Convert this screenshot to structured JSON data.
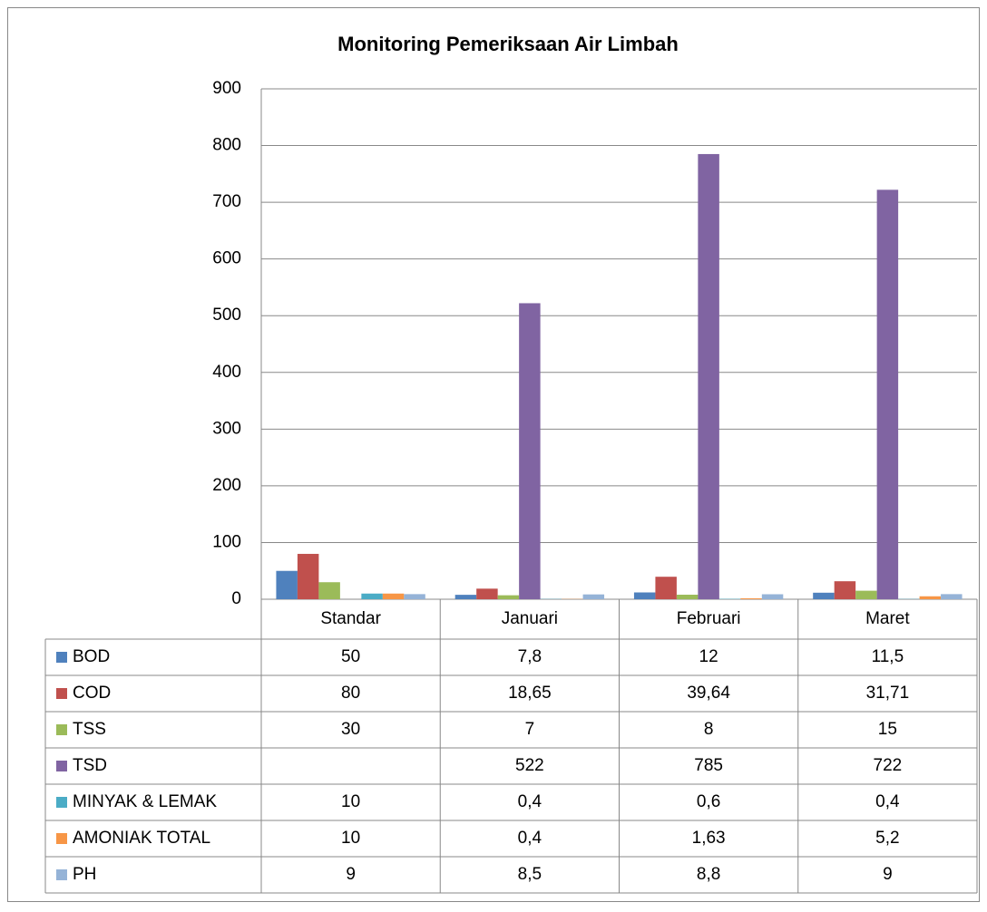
{
  "chart_data": {
    "type": "bar",
    "title": "Monitoring Pemeriksaan Air Limbah",
    "categories": [
      "Standar",
      "Januari",
      "Februari",
      "Maret"
    ],
    "series": [
      {
        "name": "BOD",
        "color": "#4f81bd",
        "values": [
          50,
          7.8,
          12,
          11.5
        ],
        "value_labels": [
          "50",
          "7,8",
          "12",
          "11,5"
        ]
      },
      {
        "name": "COD",
        "color": "#c0504d",
        "values": [
          80,
          18.65,
          39.64,
          31.71
        ],
        "value_labels": [
          "80",
          "18,65",
          "39,64",
          "31,71"
        ]
      },
      {
        "name": "TSS",
        "color": "#9bbb59",
        "values": [
          30,
          7,
          8,
          15
        ],
        "value_labels": [
          "30",
          "7",
          "8",
          "15"
        ]
      },
      {
        "name": "TSD",
        "color": "#8064a2",
        "values": [
          null,
          522,
          785,
          722
        ],
        "value_labels": [
          null,
          "522",
          "785",
          "722"
        ]
      },
      {
        "name": "MINYAK & LEMAK",
        "color": "#4bacc6",
        "values": [
          10,
          0.4,
          0.6,
          0.4
        ],
        "value_labels": [
          "10",
          "0,4",
          "0,6",
          "0,4"
        ]
      },
      {
        "name": "AMONIAK TOTAL",
        "color": "#f79646",
        "values": [
          10,
          0.4,
          1.63,
          5.2
        ],
        "value_labels": [
          "10",
          "0,4",
          "1,63",
          "5,2"
        ]
      },
      {
        "name": "PH",
        "color": "#95b3d7",
        "values": [
          9,
          8.5,
          8.8,
          9
        ],
        "value_labels": [
          "9",
          "8,5",
          "8,8",
          "9"
        ]
      }
    ],
    "ylim": [
      0,
      900
    ],
    "yticks": [
      0,
      100,
      200,
      300,
      400,
      500,
      600,
      700,
      800,
      900
    ],
    "grid": true
  }
}
